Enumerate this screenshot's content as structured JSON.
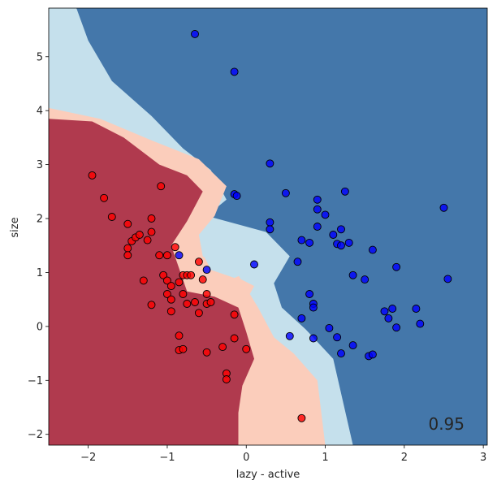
{
  "chart_data": {
    "type": "scatter",
    "title": "",
    "xlabel": "lazy - active",
    "ylabel": "size",
    "xlim": [
      -2.5,
      3.05
    ],
    "ylim": [
      -2.2,
      5.9
    ],
    "xticks": [
      "−2",
      "−1",
      "0",
      "1",
      "2",
      "3"
    ],
    "xtick_values": [
      -2,
      -1,
      0,
      1,
      2,
      3
    ],
    "yticks": [
      "−2",
      "−1",
      "0",
      "1",
      "2",
      "3",
      "4",
      "5"
    ],
    "ytick_values": [
      -2,
      -1,
      0,
      1,
      2,
      3,
      4,
      5
    ],
    "score_text": "0.95",
    "grid": false,
    "colors": {
      "dark_red": "#b03a4e",
      "light_red": "#fbcdbb",
      "light_blue": "#c5e0ec",
      "dark_blue": "#4477aa",
      "red_point": "#ff0000",
      "blue_point": "#0000ff"
    },
    "regions": [
      {
        "name": "light_blue",
        "polygon": [
          [
            -2.5,
            5.9
          ],
          [
            -2.5,
            4.05
          ],
          [
            -1.85,
            3.85
          ],
          [
            -1.2,
            3.45
          ],
          [
            -0.6,
            3.1
          ],
          [
            -0.25,
            2.6
          ],
          [
            -0.15,
            2.4
          ],
          [
            -0.35,
            2.05
          ],
          [
            -0.6,
            1.7
          ],
          [
            -0.95,
            1.2
          ],
          [
            0.35,
            1.55
          ],
          [
            0.1,
            1.05
          ],
          [
            0.3,
            0.45
          ],
          [
            0.75,
            0.1
          ],
          [
            1.05,
            -0.5
          ],
          [
            1.35,
            -2.2
          ],
          [
            0.1,
            -2.2
          ],
          [
            0.1,
            0.8
          ],
          [
            -0.5,
            1.45
          ],
          [
            -0.35,
            1.8
          ],
          [
            -0.65,
            2.15
          ],
          [
            -0.95,
            2.55
          ],
          [
            -1.35,
            3.0
          ],
          [
            -1.85,
            3.55
          ],
          [
            -2.5,
            3.85
          ]
        ]
      },
      {
        "name": "dark_blue",
        "polygon": [
          [
            -2.15,
            5.9
          ],
          [
            3.05,
            5.9
          ],
          [
            3.05,
            -2.2
          ],
          [
            1.35,
            -2.2
          ],
          [
            1.1,
            -0.6
          ],
          [
            0.75,
            -0.05
          ],
          [
            0.45,
            0.35
          ],
          [
            0.35,
            0.8
          ],
          [
            0.55,
            1.3
          ],
          [
            0.25,
            1.75
          ],
          [
            -0.25,
            1.95
          ],
          [
            -0.5,
            2.05
          ],
          [
            -0.25,
            2.35
          ],
          [
            -0.45,
            2.9
          ],
          [
            -0.8,
            3.3
          ],
          [
            -1.2,
            3.9
          ],
          [
            -1.7,
            4.55
          ],
          [
            -2.0,
            5.3
          ]
        ]
      },
      {
        "name": "light_red",
        "polygon": [
          [
            -2.5,
            4.05
          ],
          [
            -1.85,
            3.85
          ],
          [
            -1.2,
            3.45
          ],
          [
            -0.6,
            3.1
          ],
          [
            -0.25,
            2.6
          ],
          [
            -0.4,
            2.05
          ],
          [
            -0.6,
            1.7
          ],
          [
            -0.55,
            1.3
          ],
          [
            -0.1,
            0.95
          ],
          [
            0.15,
            0.35
          ],
          [
            0.35,
            -0.2
          ],
          [
            0.6,
            -0.5
          ],
          [
            0.9,
            -1.0
          ],
          [
            1.0,
            -2.2
          ],
          [
            -2.5,
            -2.2
          ]
        ]
      },
      {
        "name": "dark_red",
        "polygon": [
          [
            -2.5,
            3.85
          ],
          [
            -1.95,
            3.8
          ],
          [
            -1.55,
            3.5
          ],
          [
            -1.1,
            3.0
          ],
          [
            -0.75,
            2.8
          ],
          [
            -0.55,
            2.5
          ],
          [
            -0.75,
            1.95
          ],
          [
            -0.95,
            1.5
          ],
          [
            -0.75,
            0.65
          ],
          [
            -0.4,
            0.55
          ],
          [
            -0.1,
            0.35
          ],
          [
            0.0,
            -0.1
          ],
          [
            0.1,
            -0.6
          ],
          [
            -0.05,
            -1.1
          ],
          [
            -0.1,
            -1.6
          ],
          [
            -0.1,
            -2.2
          ],
          [
            -2.5,
            -2.2
          ]
        ]
      },
      {
        "name": "light_blue",
        "polygon": [
          [
            -0.55,
            1.35
          ],
          [
            -0.25,
            1.65
          ],
          [
            0.1,
            1.75
          ],
          [
            0.35,
            1.5
          ],
          [
            0.1,
            1.05
          ],
          [
            -0.15,
            0.9
          ],
          [
            -0.45,
            1.05
          ]
        ]
      },
      {
        "name": "light_red",
        "polygon": [
          [
            -0.4,
            0.55
          ],
          [
            -0.1,
            0.9
          ],
          [
            0.1,
            0.75
          ],
          [
            -0.05,
            0.35
          ]
        ]
      }
    ],
    "series": [
      {
        "name": "",
        "color": "red",
        "points": [
          [
            -1.95,
            2.8
          ],
          [
            -1.8,
            2.38
          ],
          [
            -1.7,
            2.03
          ],
          [
            -1.5,
            1.9
          ],
          [
            -1.5,
            1.45
          ],
          [
            -1.5,
            1.32
          ],
          [
            -1.45,
            1.58
          ],
          [
            -1.4,
            1.65
          ],
          [
            -1.35,
            1.7
          ],
          [
            -1.25,
            1.6
          ],
          [
            -1.2,
            2.0
          ],
          [
            -1.2,
            1.75
          ],
          [
            -1.3,
            0.85
          ],
          [
            -1.2,
            0.4
          ],
          [
            -1.1,
            1.32
          ],
          [
            -1.05,
            0.95
          ],
          [
            -1.0,
            1.32
          ],
          [
            -1.0,
            0.85
          ],
          [
            -1.0,
            0.6
          ],
          [
            -0.95,
            0.75
          ],
          [
            -0.95,
            0.5
          ],
          [
            -0.95,
            0.28
          ],
          [
            -0.9,
            1.47
          ],
          [
            -0.85,
            0.82
          ],
          [
            -0.85,
            -0.17
          ],
          [
            -0.85,
            -0.44
          ],
          [
            -0.8,
            0.95
          ],
          [
            -0.8,
            0.6
          ],
          [
            -0.8,
            -0.42
          ],
          [
            -0.75,
            0.95
          ],
          [
            -0.75,
            0.42
          ],
          [
            -0.7,
            0.95
          ],
          [
            -0.65,
            0.45
          ],
          [
            -0.6,
            1.2
          ],
          [
            -0.6,
            0.25
          ],
          [
            -0.55,
            0.87
          ],
          [
            -0.5,
            0.6
          ],
          [
            -0.5,
            0.42
          ],
          [
            -0.45,
            0.45
          ],
          [
            -0.5,
            -0.48
          ],
          [
            -0.3,
            -0.38
          ],
          [
            -0.25,
            -0.87
          ],
          [
            -0.25,
            -0.98
          ],
          [
            -0.15,
            0.22
          ],
          [
            -0.15,
            -0.22
          ],
          [
            0.0,
            -0.42
          ],
          [
            0.7,
            -1.7
          ],
          [
            -1.08,
            2.6
          ]
        ]
      },
      {
        "name": "",
        "color": "blue",
        "points": [
          [
            -0.65,
            5.42
          ],
          [
            -0.15,
            4.72
          ],
          [
            0.3,
            3.02
          ],
          [
            -0.15,
            2.45
          ],
          [
            -0.12,
            2.42
          ],
          [
            0.5,
            2.47
          ],
          [
            0.3,
            1.93
          ],
          [
            0.3,
            1.8
          ],
          [
            0.9,
            2.35
          ],
          [
            0.9,
            2.17
          ],
          [
            1.0,
            2.07
          ],
          [
            0.9,
            1.85
          ],
          [
            1.25,
            2.5
          ],
          [
            0.7,
            1.6
          ],
          [
            0.8,
            1.55
          ],
          [
            1.1,
            1.7
          ],
          [
            1.2,
            1.8
          ],
          [
            1.15,
            1.53
          ],
          [
            1.2,
            1.5
          ],
          [
            1.3,
            1.55
          ],
          [
            1.6,
            1.42
          ],
          [
            2.5,
            2.2
          ],
          [
            0.65,
            1.2
          ],
          [
            1.35,
            0.95
          ],
          [
            1.5,
            0.87
          ],
          [
            1.9,
            1.1
          ],
          [
            2.55,
            0.88
          ],
          [
            -0.85,
            1.32
          ],
          [
            -0.5,
            1.05
          ],
          [
            0.1,
            1.15
          ],
          [
            0.8,
            0.6
          ],
          [
            0.85,
            0.42
          ],
          [
            0.85,
            0.35
          ],
          [
            0.7,
            0.15
          ],
          [
            0.55,
            -0.18
          ],
          [
            0.85,
            -0.22
          ],
          [
            1.05,
            -0.03
          ],
          [
            1.15,
            -0.2
          ],
          [
            1.2,
            -0.5
          ],
          [
            1.35,
            -0.35
          ],
          [
            1.55,
            -0.55
          ],
          [
            1.6,
            -0.52
          ],
          [
            1.75,
            0.28
          ],
          [
            1.8,
            0.15
          ],
          [
            1.85,
            0.33
          ],
          [
            1.9,
            -0.02
          ],
          [
            2.15,
            0.33
          ],
          [
            2.2,
            0.05
          ]
        ]
      }
    ]
  }
}
